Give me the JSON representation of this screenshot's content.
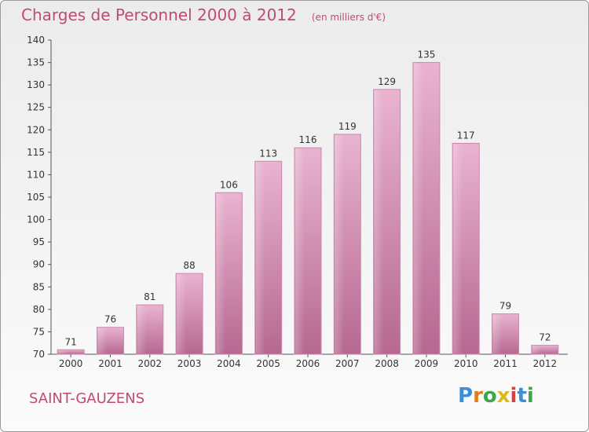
{
  "header": {
    "title": "Charges de Personnel 2000 à 2012",
    "subtitle": "(en milliers d'€)"
  },
  "commune": "SAINT-GAUZENS",
  "logo": {
    "text": "Proxiti",
    "letters": [
      {
        "ch": "P",
        "color": "#3a8fd6"
      },
      {
        "ch": "r",
        "color": "#e07c1a"
      },
      {
        "ch": "o",
        "color": "#3aa84a"
      },
      {
        "ch": "x",
        "color": "#e0b81a"
      },
      {
        "ch": "i",
        "color": "#d94040"
      },
      {
        "ch": "t",
        "color": "#3a8fd6"
      },
      {
        "ch": "i",
        "color": "#3aa84a"
      }
    ]
  },
  "colors": {
    "bar": "#c7719e",
    "bar_light": "#e8b0cf",
    "axis_text": "#333333",
    "title": "#c04a77"
  },
  "chart_data": {
    "type": "bar",
    "title": "Charges de Personnel 2000 à 2012",
    "subtitle": "(en milliers d'€)",
    "categories": [
      "2000",
      "2001",
      "2002",
      "2003",
      "2004",
      "2005",
      "2006",
      "2007",
      "2008",
      "2009",
      "2010",
      "2011",
      "2012"
    ],
    "values": [
      71,
      76,
      81,
      88,
      106,
      113,
      116,
      119,
      129,
      135,
      117,
      79,
      72
    ],
    "ylim": [
      70,
      140
    ],
    "yticks": [
      70,
      75,
      80,
      85,
      90,
      95,
      100,
      105,
      110,
      115,
      120,
      125,
      130,
      135,
      140
    ],
    "grid": false,
    "legend": "none"
  }
}
